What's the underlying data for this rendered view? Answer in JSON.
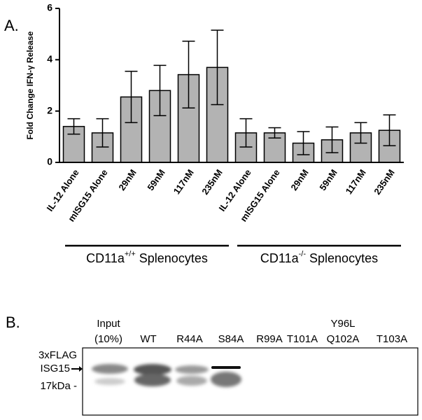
{
  "panel_a": "A.",
  "chart_data": {
    "type": "bar",
    "ylabel": "Fold Change IFN-γ Release",
    "categories": [
      "IL-12 Alone",
      "mISG15 Alone",
      "29nM",
      "59nM",
      "117nM",
      "235nM",
      "IL-12 Alone",
      "mISG15 Alone",
      "29nM",
      "59nM",
      "117nM",
      "235nM"
    ],
    "values": [
      1.4,
      1.15,
      2.55,
      2.8,
      3.42,
      3.7,
      1.15,
      1.15,
      0.75,
      0.88,
      1.15,
      1.25
    ],
    "errors": [
      0.3,
      0.55,
      1.0,
      0.98,
      1.3,
      1.45,
      0.55,
      0.2,
      0.45,
      0.5,
      0.4,
      0.6
    ],
    "color": "#b3b3b3",
    "ylim": [
      0,
      6
    ],
    "yticks": [
      0,
      2,
      4,
      6
    ],
    "groups": [
      {
        "label": "CD11a",
        "superscript": "+/+",
        "suffix": "Splenocytes"
      },
      {
        "label": "CD11a",
        "superscript": "-/-",
        "suffix": "Splenocytes"
      }
    ]
  },
  "panel_b": {
    "label": "B.",
    "lanes": [
      [
        "Input",
        "(10%)"
      ],
      [
        "WT"
      ],
      [
        "R44A"
      ],
      [
        "S84A"
      ],
      [
        "R99A"
      ],
      [
        "T101A"
      ],
      [
        "Y96L",
        "Q102A"
      ],
      [
        "T103A"
      ]
    ],
    "marker": [
      "3xFLAG",
      "ISG15"
    ],
    "size_marker": "17kDa -"
  }
}
